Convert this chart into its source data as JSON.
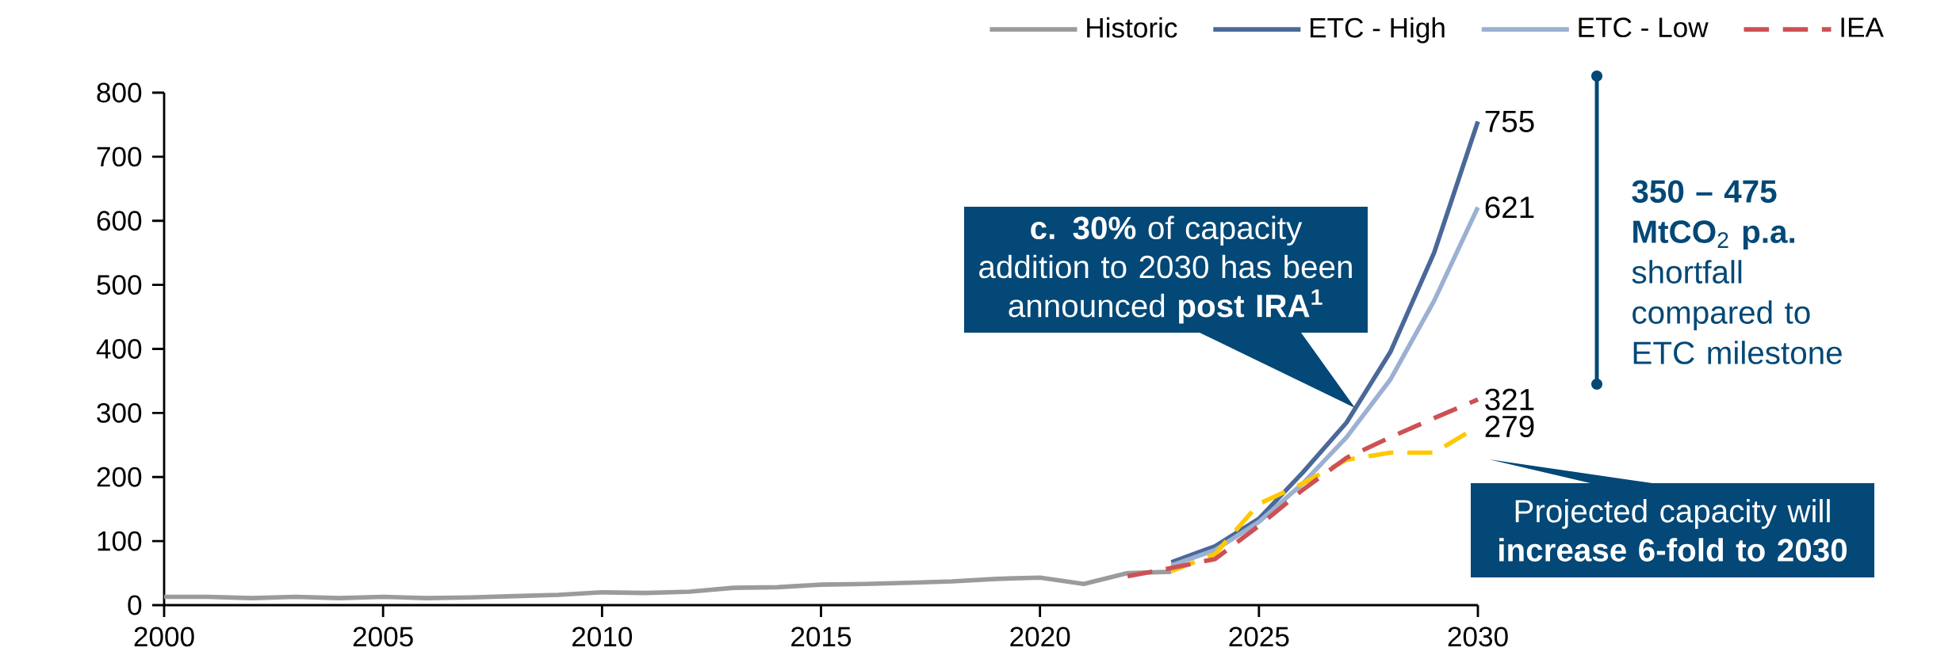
{
  "chart_data": {
    "type": "line",
    "xlim": [
      2000,
      2030
    ],
    "xticks": [
      2000,
      2005,
      2010,
      2015,
      2020,
      2025,
      2030
    ],
    "ylim": [
      0,
      800
    ],
    "yticks": [
      0,
      100,
      200,
      300,
      400,
      500,
      600,
      700,
      800
    ],
    "legend": "top right",
    "series": [
      {
        "name": "Historic",
        "color": "#9b9b9b",
        "line_style": "solid",
        "x": [
          2000,
          2001,
          2002,
          2003,
          2004,
          2005,
          2006,
          2007,
          2008,
          2009,
          2010,
          2011,
          2012,
          2013,
          2014,
          2015,
          2016,
          2017,
          2018,
          2019,
          2020,
          2021,
          2022,
          2023
        ],
        "values": [
          13,
          13,
          11,
          13,
          11,
          13,
          11,
          12,
          14,
          16,
          20,
          19,
          21,
          27,
          28,
          32,
          33,
          35,
          37,
          41,
          43,
          33,
          50,
          52
        ]
      },
      {
        "name": "ETC - High",
        "color": "#4a6898",
        "line_style": "solid",
        "x": [
          2023,
          2024,
          2025,
          2026,
          2027,
          2028,
          2029,
          2030
        ],
        "values": [
          67,
          92,
          135,
          207,
          285,
          395,
          550,
          755
        ],
        "value_labels": [
          null,
          null,
          null,
          null,
          null,
          null,
          null,
          "755"
        ]
      },
      {
        "name": "ETC - Low",
        "color": "#9bb0d2",
        "line_style": "solid",
        "x": [
          2023,
          2024,
          2025,
          2026,
          2027,
          2028,
          2029,
          2030
        ],
        "values": [
          62,
          86,
          130,
          190,
          262,
          352,
          475,
          621
        ],
        "value_labels": [
          null,
          null,
          null,
          null,
          null,
          null,
          null,
          "621"
        ]
      },
      {
        "color": "#ffc800",
        "line_style": "dashed",
        "x": [
          2023,
          2024,
          2025,
          2026,
          2027,
          2028,
          2029,
          2030
        ],
        "values": [
          53,
          80,
          158,
          190,
          227,
          238,
          238,
          279
        ],
        "value_labels": [
          null,
          null,
          null,
          null,
          null,
          null,
          null,
          "279"
        ]
      },
      {
        "name": "IEA",
        "color": "#cd5055",
        "line_style": "dashed",
        "x": [
          2022,
          2023,
          2024,
          2025,
          2026,
          2027,
          2028,
          2029,
          2030
        ],
        "values": [
          45,
          58,
          72,
          124,
          180,
          230,
          262,
          292,
          321
        ],
        "value_labels": [
          null,
          null,
          null,
          null,
          null,
          null,
          null,
          null,
          "321"
        ]
      }
    ],
    "annotations": [
      "**c. 30%** of capacity addition to 2030 has been announced **post IRA$^{1}$**",
      "Projected capacity will **increase 6-fold to 2030**",
      "**350 – 475 MtCO**$_{2}$ **p.a.** shortfall compared to ETC milestone"
    ]
  }
}
